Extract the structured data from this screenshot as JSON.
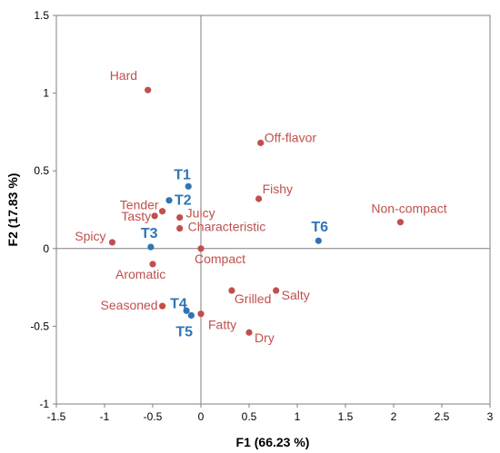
{
  "chart_data": {
    "type": "scatter",
    "xlabel": "F1 (66.23 %)",
    "ylabel": "F2 (17.83 %)",
    "xlim": [
      -1.5,
      3
    ],
    "ylim": [
      -1,
      1.5
    ],
    "xticks": [
      "-1.5",
      "-1",
      "-0.5",
      "0",
      "0.5",
      "1",
      "1.5",
      "2",
      "2.5",
      "3"
    ],
    "yticks": [
      "-1",
      "-0.5",
      "0",
      "0.5",
      "1",
      "1.5"
    ],
    "grid": false,
    "zero_lines": true,
    "series": [
      {
        "color": "#c0504d",
        "points": [
          {
            "label": "Hard",
            "x": -0.55,
            "y": 1.02
          },
          {
            "label": "Off-flavor",
            "x": 0.62,
            "y": 0.68
          },
          {
            "label": "Fishy",
            "x": 0.6,
            "y": 0.32
          },
          {
            "label": "Non-compact",
            "x": 2.07,
            "y": 0.17
          },
          {
            "label": "Tender",
            "x": -0.4,
            "y": 0.24
          },
          {
            "label": "Tasty",
            "x": -0.48,
            "y": 0.21
          },
          {
            "label": "Juicy",
            "x": -0.22,
            "y": 0.2
          },
          {
            "label": "Characteristic",
            "x": -0.22,
            "y": 0.13
          },
          {
            "label": "Spicy",
            "x": -0.92,
            "y": 0.04
          },
          {
            "label": "Compact",
            "x": 0.0,
            "y": 0.0
          },
          {
            "label": "Aromatic",
            "x": -0.5,
            "y": -0.1
          },
          {
            "label": "Grilled",
            "x": 0.32,
            "y": -0.27
          },
          {
            "label": "Salty",
            "x": 0.78,
            "y": -0.27
          },
          {
            "label": "Seasoned",
            "x": -0.4,
            "y": -0.37
          },
          {
            "label": "Fatty",
            "x": 0.0,
            "y": -0.42
          },
          {
            "label": "Dry",
            "x": 0.5,
            "y": -0.54
          }
        ]
      },
      {
        "color": "#2e75b6",
        "points": [
          {
            "label": "T1",
            "x": -0.13,
            "y": 0.4
          },
          {
            "label": "T2",
            "x": -0.33,
            "y": 0.31
          },
          {
            "label": "T3",
            "x": -0.52,
            "y": 0.01
          },
          {
            "label": "T6",
            "x": 1.22,
            "y": 0.05
          },
          {
            "label": "T4",
            "x": -0.15,
            "y": -0.4
          },
          {
            "label": "T5",
            "x": -0.1,
            "y": -0.43
          }
        ]
      }
    ]
  }
}
